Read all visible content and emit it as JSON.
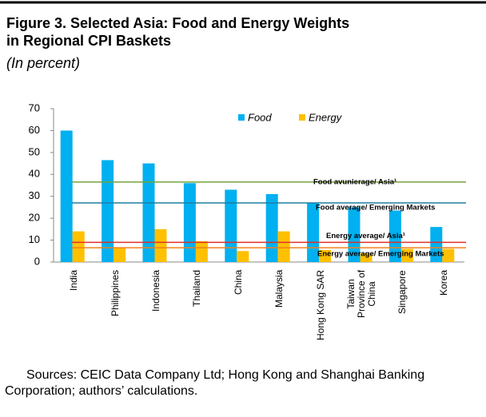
{
  "chart_data": {
    "type": "bar",
    "title": "Figure 3. Selected Asia: Food and Energy Weights in Regional CPI Baskets",
    "subtitle": "(In percent)",
    "categories": [
      "India",
      "Philippines",
      "Indonesia",
      "Thailand",
      "China",
      "Malaysia",
      "Hong Kong SAR",
      "Taiwan\nProvince of\nChina",
      "Singapore",
      "Korea"
    ],
    "series": [
      {
        "name": "Food",
        "color": "#00b0f0",
        "values": [
          60,
          46.5,
          45,
          36,
          33,
          31,
          27,
          25,
          23.5,
          16
        ]
      },
      {
        "name": "Energy",
        "color": "#ffc000",
        "values": [
          14,
          6.5,
          15,
          9.5,
          5,
          14,
          5.5,
          4,
          6,
          6
        ]
      }
    ],
    "reference_lines": [
      {
        "label": "Food avunierage/ Asia¹",
        "value": 36.5,
        "color": "#77a33a"
      },
      {
        "label": "Food average/ Emerging Markets",
        "value": 27,
        "color": "#1f7f9f"
      },
      {
        "label": "Energy average/ Asia¹",
        "value": 9,
        "color": "#e0302a"
      },
      {
        "label": "Energy average/ Emerging Markets",
        "value": 6.5,
        "color": "#f08020"
      }
    ],
    "ylim": [
      0,
      70
    ],
    "yticks": [
      0,
      10,
      20,
      30,
      40,
      50,
      60,
      70
    ],
    "grid": false,
    "legend": "top",
    "source": "Sources: CEIC Data Company Ltd; Hong Kong and Shanghai Banking Corporation; authors’ calculations."
  }
}
